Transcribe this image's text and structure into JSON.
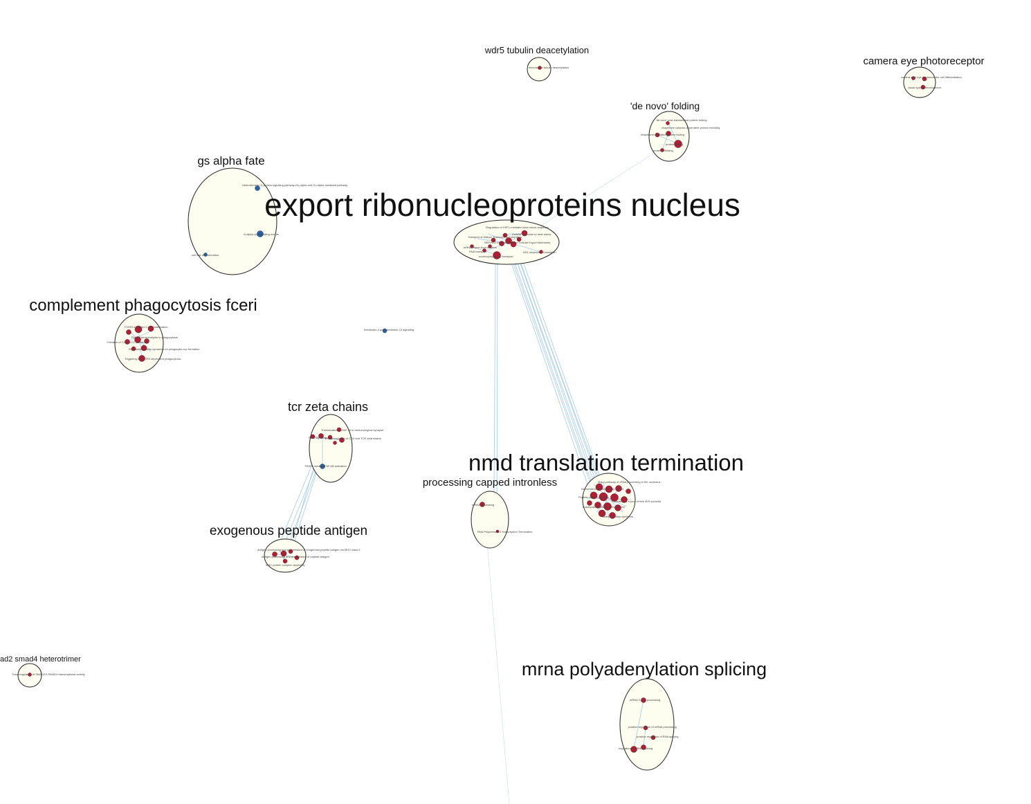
{
  "colors": {
    "cluster_fill": "#fdfdf0",
    "cluster_stroke": "#222222",
    "edge": "#9cc8e6",
    "node_upregulated": "#b01e34",
    "node_downregulated": "#2a62a3"
  },
  "clusters": [
    {
      "id": "export",
      "label": "export ribonucleoproteins nucleus",
      "label_size": "xl"
    },
    {
      "id": "nmd",
      "label": "nmd translation termination",
      "label_size": "lg"
    },
    {
      "id": "mrna",
      "label": "mrna polyadenylation splicing",
      "label_size": "md"
    },
    {
      "id": "complement",
      "label": "complement phagocytosis fceri",
      "label_size": "md"
    },
    {
      "id": "gs",
      "label": "gs alpha fate",
      "label_size": "sm"
    },
    {
      "id": "tcr",
      "label": "tcr zeta chains",
      "label_size": "sm"
    },
    {
      "id": "exogenous",
      "label": "exogenous peptide antigen",
      "label_size": "sm"
    },
    {
      "id": "processing",
      "label": "processing capped intronless",
      "label_size": "xs"
    },
    {
      "id": "denovo",
      "label": "'de novo' folding",
      "label_size": "xs"
    },
    {
      "id": "wdr5",
      "label": "wdr5 tubulin deacetylation",
      "label_size": "xs"
    },
    {
      "id": "camera",
      "label": "camera eye photoreceptor",
      "label_size": "xs"
    },
    {
      "id": "smad",
      "label": "ad2 smad4 heterotrimer",
      "label_size": "xs"
    }
  ],
  "node_labels": {
    "gs_1": "Heterotrimeric G-protein signaling pathway-Gq alpha and Go alpha mediated pathway",
    "gs_2": "G-alpha (s) signalling events",
    "gs_3": "cell fate determination",
    "exp_1": "Regulation of HSF1-mediated heat shock response",
    "exp_2": "Cellular response to heat stress",
    "exp_3": "Transport of Mature Transcript to Cytoplasm",
    "exp_4": "mRNA export from nucleus",
    "exp_5": "RNA transport",
    "exp_6": "nucleocytoplasmic transport",
    "exp_7": "NEP/NS2 Interacts with the Cellular Export Machinery",
    "exp_8": "NS1-dependent translation",
    "comp_1": "FCERI mediated Ca+2 mobilization",
    "comp_2": "Role of phospholipids in phagocytosis",
    "comp_3": "Creation of C4 and C2 activators",
    "comp_4": "Regulation of actin dynamics for phagocytic cup formation",
    "comp_5": "Triggering of FCGR3 dependent phagocytosis",
    "iso_1": "Interleukin-4 and Interleukin-13 signaling",
    "tcr_1": "Translocation of ZAP-70 to Immunological synapse",
    "tcr_2": "Phosphorylation of CD3 and TCR zeta chains",
    "tcr_3": "PD-1 signaling",
    "tcr_4": "TRAF6 mediated NF-kB activation",
    "exo_1": "Antigen processing and presentation of exogenous peptide antigen via MHC class II",
    "exo_2": "Antigen processing and presentation of peptide antigen",
    "exo_3": "MHC protein complex assembly",
    "proc_1": "mRNA processing",
    "proc_2": "RNA Polymerase II Transcription Termination",
    "nmd_1": "Major pathway of rRNA processing in the nucleolus",
    "nmd_2": "Nonsense-Mediated Decay (NMD)",
    "nmd_3": "Peptide chain elongation",
    "nmd_4": "Formation of a pool of free 40S subunits",
    "nmd_5": "Eukaryotic Translation Termination",
    "nmd_6": "Selenocysteine synthesis",
    "mr_1": "mRNA 3'-end processing",
    "mr_2": "positive regulation of mRNA processing",
    "mr_3": "positive regulation of RNA splicing",
    "mr_4": "regulation of mRNA splicing",
    "dn_1": "'de novo' post-translational protein folding",
    "dn_2": "chaperone cofactor-dependent protein refolding",
    "dn_3": "chaperone-mediated protein folding",
    "dn_4": "protein folding",
    "dn_5": "protein refolding",
    "wd_1": "microtubule tubulin deacetylation",
    "cam_1": "camera-type eye photoreceptor cell differentiation",
    "cam_2": "visual system development",
    "smad_1": "Downregulation of SMAD2/3:SMAD4 transcriptional activity"
  }
}
